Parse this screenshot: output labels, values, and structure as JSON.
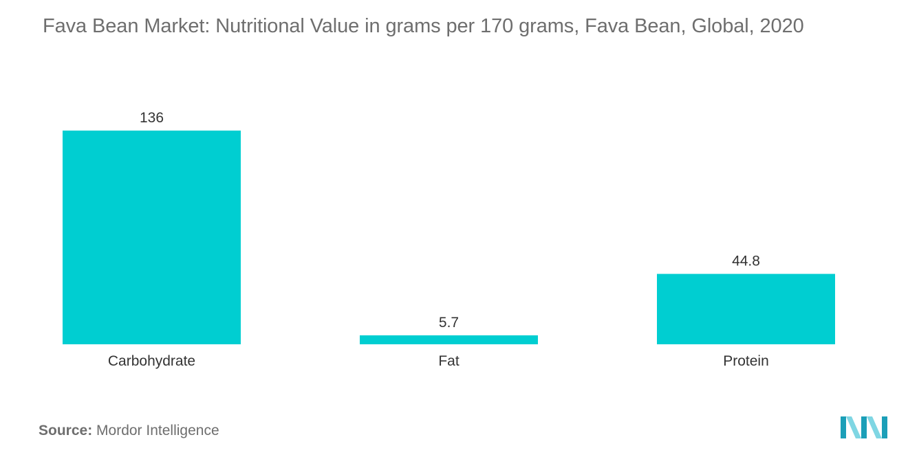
{
  "colors": {
    "bar": "#00ced1",
    "title": "#6e6e6e",
    "text": "#333333",
    "logo_dark": "#1b9fb8",
    "logo_light": "#7fd6e3"
  },
  "chart_data": {
    "type": "bar",
    "title": "Fava Bean Market: Nutritional Value in grams per 170 grams, Fava Bean, Global, 2020",
    "categories": [
      "Carbohydrate",
      "Fat",
      "Protein"
    ],
    "values": [
      136,
      5.7,
      44.8
    ],
    "value_labels": [
      "136",
      "5.7",
      "44.8"
    ],
    "xlabel": "",
    "ylabel": "",
    "ylim": [
      0,
      136
    ],
    "grid": false,
    "legend": "none"
  },
  "source": {
    "label": "Source:",
    "text": "Mordor Intelligence"
  },
  "logo": {
    "icon": "mordor-intelligence-logo"
  }
}
